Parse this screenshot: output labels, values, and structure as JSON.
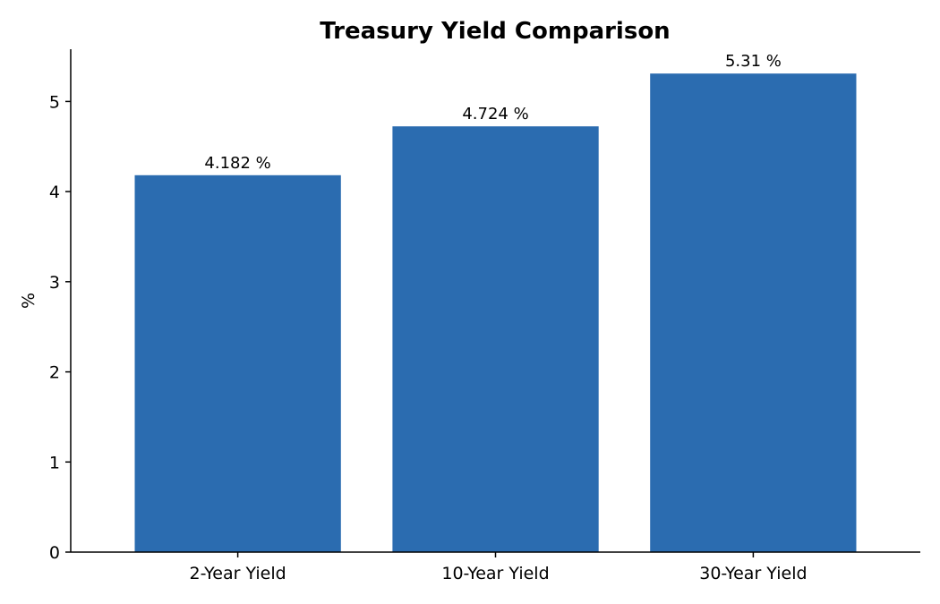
{
  "chart_data": {
    "type": "bar",
    "title": "Treasury Yield Comparison",
    "xlabel": "",
    "ylabel": "%",
    "categories": [
      "2-Year Yield",
      "10-Year Yield",
      "30-Year Yield"
    ],
    "values": [
      4.182,
      4.724,
      5.31
    ],
    "data_labels": [
      "4.182 %",
      "4.724 %",
      "5.31 %"
    ],
    "ylim": [
      0,
      5.58
    ],
    "yticks": [
      0,
      1,
      2,
      3,
      4,
      5
    ],
    "bar_color": "#2b6cb0",
    "grid": false,
    "legend": "none"
  }
}
